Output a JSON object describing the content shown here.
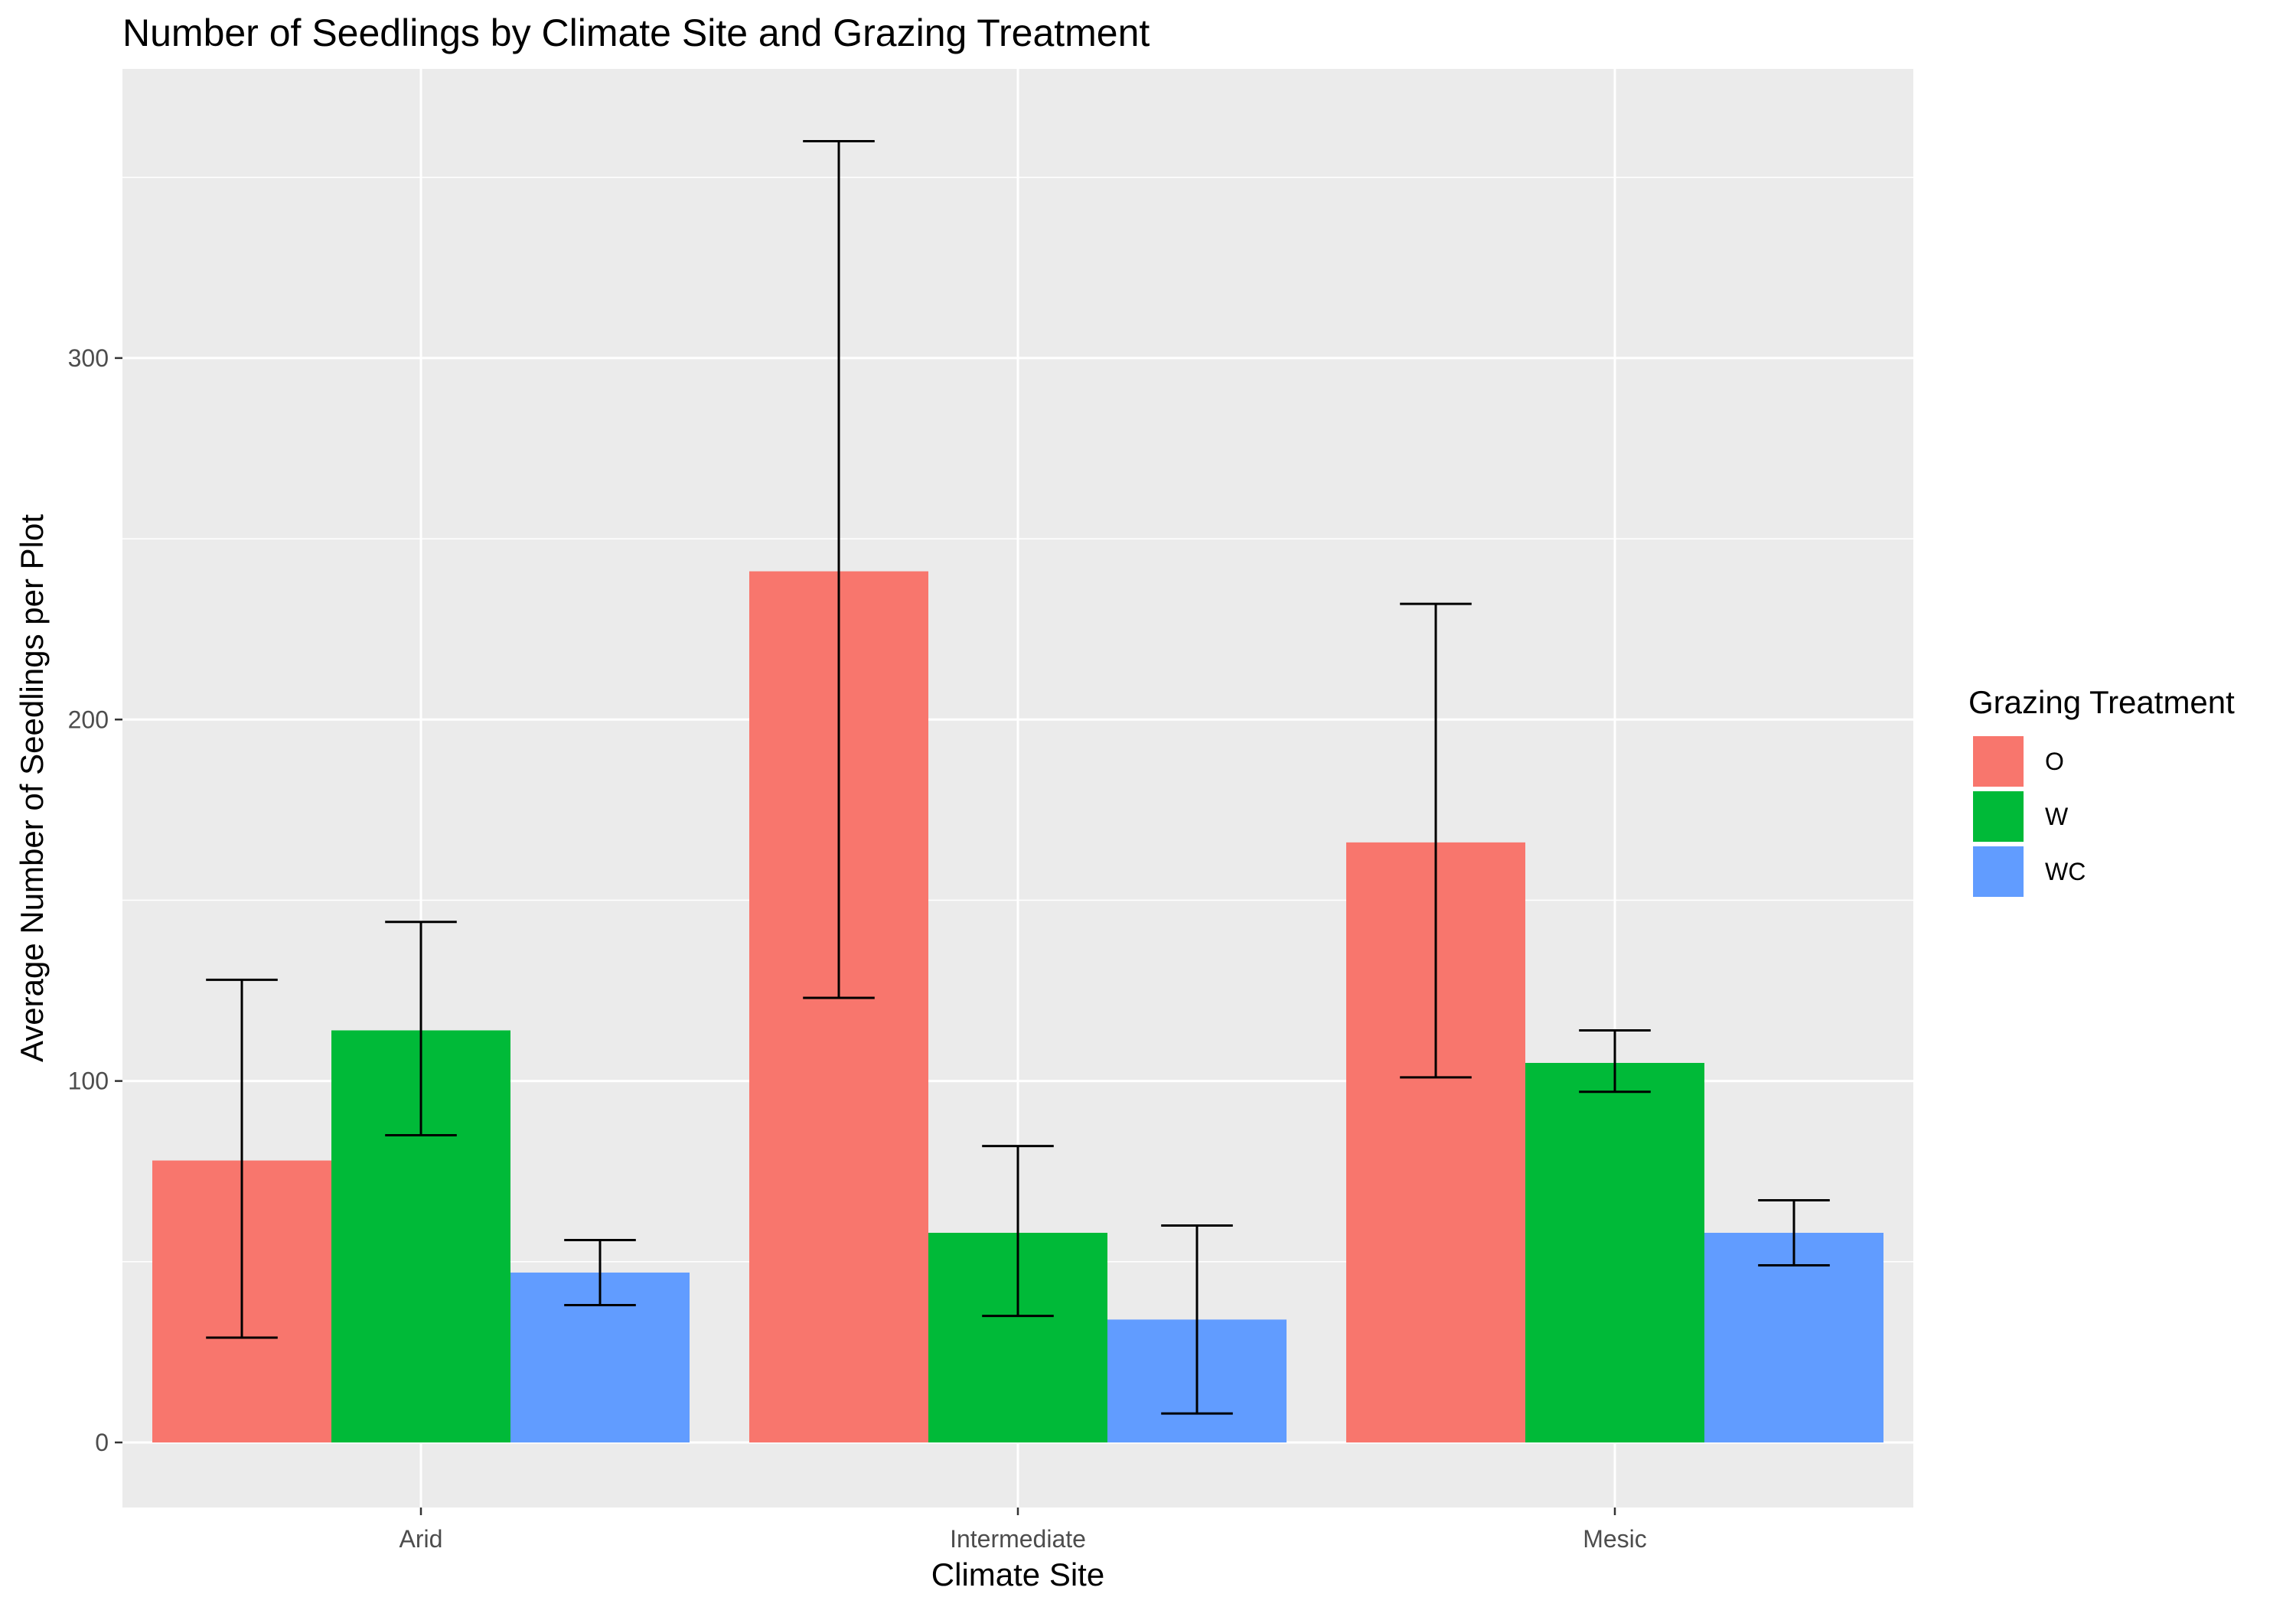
{
  "chart_data": {
    "type": "bar",
    "title": "Number of Seedlings by Climate Site and Grazing Treatment",
    "xlabel": "Climate Site",
    "ylabel": "Average Number of Seedlings per Plot",
    "categories": [
      "Arid",
      "Intermediate",
      "Mesic"
    ],
    "ylim": [
      -18,
      380
    ],
    "yticks": [
      0,
      100,
      200,
      300
    ],
    "ytick_labels": [
      "0",
      "100",
      "200",
      "300"
    ],
    "grid": true,
    "legend": {
      "title": "Grazing Treatment",
      "position": "right"
    },
    "series": [
      {
        "name": "O",
        "color": "#F8766D",
        "values": [
          78,
          241,
          166
        ],
        "err_low": [
          29,
          123,
          101
        ],
        "err_high": [
          128,
          360,
          232
        ]
      },
      {
        "name": "W",
        "color": "#00BA38",
        "values": [
          114,
          58,
          105
        ],
        "err_low": [
          85,
          35,
          97
        ],
        "err_high": [
          144,
          82,
          114
        ]
      },
      {
        "name": "WC",
        "color": "#619CFF",
        "values": [
          47,
          34,
          58
        ],
        "err_low": [
          38,
          8,
          49
        ],
        "err_high": [
          56,
          60,
          67
        ]
      }
    ]
  }
}
